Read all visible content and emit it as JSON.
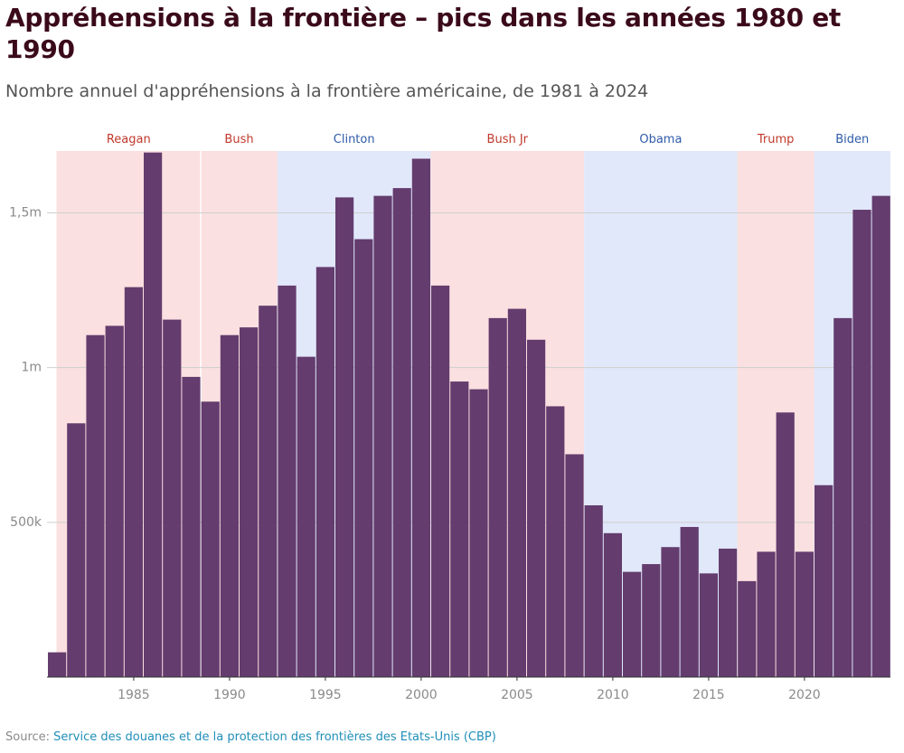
{
  "title": "Appréhensions à la frontière – pics dans les années 1980 et 1990",
  "subtitle": "Nombre annuel d'appréhensions à la frontière américaine, de 1981 à 2024",
  "source": {
    "label": "Source:",
    "text": "Service des douanes et de la protection des frontières des Etats-Unis (CBP)"
  },
  "colors": {
    "bar": "#643c6e",
    "republican_band": "#fae0e0",
    "democrat_band": "#e1e8fa",
    "republican_label": "#c0392b",
    "democrat_label": "#2f5ba8"
  },
  "chart_data": {
    "type": "bar",
    "title": "Appréhensions à la frontière – pics dans les années 1980 et 1990",
    "subtitle": "Nombre annuel d'appréhensions à la frontière américaine, de 1981 à 2024",
    "xlabel": "",
    "ylabel": "",
    "xlim": [
      1981,
      2024
    ],
    "ylim": [
      0,
      1700000
    ],
    "grid": true,
    "x_ticks": [
      1985,
      1990,
      1995,
      2000,
      2005,
      2010,
      2015,
      2020
    ],
    "x_tick_labels": [
      "1985",
      "1990",
      "1995",
      "2000",
      "2005",
      "2010",
      "2015",
      "2020"
    ],
    "y_ticks": [
      500000,
      1000000,
      1500000
    ],
    "y_tick_labels": [
      "500k",
      "1m",
      "1,5m"
    ],
    "categories": [
      1981,
      1982,
      1983,
      1984,
      1985,
      1986,
      1987,
      1988,
      1989,
      1990,
      1991,
      1992,
      1993,
      1994,
      1995,
      1996,
      1997,
      1998,
      1999,
      2000,
      2001,
      2002,
      2003,
      2004,
      2005,
      2006,
      2007,
      2008,
      2009,
      2010,
      2011,
      2012,
      2013,
      2014,
      2015,
      2016,
      2017,
      2018,
      2019,
      2020,
      2021,
      2022,
      2023,
      2024
    ],
    "values": [
      80000,
      820000,
      1105000,
      1135000,
      1260000,
      1695000,
      1155000,
      970000,
      890000,
      1105000,
      1130000,
      1200000,
      1265000,
      1035000,
      1325000,
      1550000,
      1415000,
      1555000,
      1580000,
      1675000,
      1265000,
      955000,
      930000,
      1160000,
      1190000,
      1090000,
      875000,
      720000,
      555000,
      465000,
      340000,
      365000,
      420000,
      485000,
      335000,
      415000,
      310000,
      405000,
      855000,
      405000,
      620000,
      1160000,
      1510000,
      1555000
    ],
    "presidencies": [
      {
        "name": "Reagan",
        "start": 1981,
        "end": 1989,
        "party": "R"
      },
      {
        "name": "Bush",
        "start": 1989,
        "end": 1993,
        "party": "R"
      },
      {
        "name": "Clinton",
        "start": 1993,
        "end": 2001,
        "party": "D"
      },
      {
        "name": "Bush Jr",
        "start": 2001,
        "end": 2009,
        "party": "R"
      },
      {
        "name": "Obama",
        "start": 2009,
        "end": 2017,
        "party": "D"
      },
      {
        "name": "Trump",
        "start": 2017,
        "end": 2021,
        "party": "R"
      },
      {
        "name": "Biden",
        "start": 2021,
        "end": 2025,
        "party": "D"
      }
    ]
  }
}
